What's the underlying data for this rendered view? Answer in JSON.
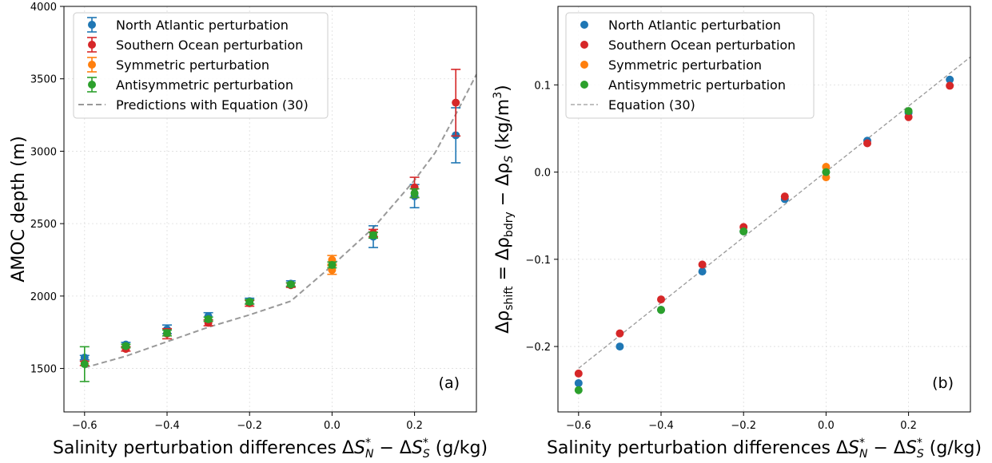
{
  "chart_data": [
    {
      "type": "scatter",
      "panel_label": "(a)",
      "xlabel": "Salinity perturbation differences ΔS*_N − ΔS*_S (g/kg)",
      "xlabel_parts": {
        "pre": "Salinity perturbation differences Δ",
        "s1": "S",
        "sup1": "*",
        "sub1": "N",
        "mid": " − Δ",
        "s2": "S",
        "sup2": "*",
        "sub2": "S",
        "post": " (g/kg)"
      },
      "ylabel": "AMOC depth (m)",
      "xlim": [
        -0.65,
        0.35
      ],
      "ylim": [
        1200,
        4000
      ],
      "xticks": [
        -0.6,
        -0.4,
        -0.2,
        0.0,
        0.2
      ],
      "xtick_labels": [
        "−0.6",
        "−0.4",
        "−0.2",
        "0.0",
        "0.2"
      ],
      "yticks": [
        1500,
        2000,
        2500,
        3000,
        3500,
        4000
      ],
      "ytick_labels": [
        "1500",
        "2000",
        "2500",
        "3000",
        "3500",
        "4000"
      ],
      "grid": true,
      "legend_position": "upper-left",
      "series": [
        {
          "name": "North Atlantic perturbation",
          "color": "#1f77b4",
          "marker": "errorbar",
          "x": [
            -0.6,
            -0.5,
            -0.4,
            -0.3,
            -0.2,
            -0.1,
            0.1,
            0.2,
            0.3
          ],
          "y": [
            1575,
            1665,
            1770,
            1860,
            1965,
            2085,
            2410,
            2690,
            3110
          ],
          "err": [
            15,
            15,
            30,
            25,
            20,
            20,
            75,
            80,
            190
          ]
        },
        {
          "name": "Southern Ocean perturbation",
          "color": "#d62728",
          "marker": "errorbar",
          "x": [
            -0.6,
            -0.5,
            -0.4,
            -0.3,
            -0.2,
            -0.1,
            0.1,
            0.2,
            0.3
          ],
          "y": [
            1535,
            1635,
            1740,
            1815,
            1950,
            2075,
            2435,
            2750,
            3335
          ],
          "err": [
            15,
            15,
            35,
            20,
            20,
            15,
            25,
            70,
            230
          ]
        },
        {
          "name": "Symmetric perturbation",
          "color": "#ff7f0e",
          "marker": "errorbar",
          "x": [
            0.0,
            0.0
          ],
          "y": [
            2250,
            2180
          ],
          "err": [
            30,
            30
          ]
        },
        {
          "name": "Antisymmetric perturbation",
          "color": "#2ca02c",
          "marker": "errorbar",
          "x": [
            -0.6,
            -0.5,
            -0.4,
            -0.3,
            -0.2,
            -0.1,
            0.0,
            0.1,
            0.2
          ],
          "y": [
            1530,
            1655,
            1745,
            1840,
            1960,
            2080,
            2215,
            2420,
            2710
          ],
          "err": [
            120,
            12,
            20,
            15,
            15,
            12,
            20,
            20,
            30
          ]
        },
        {
          "name": "Predictions with Equation (30)",
          "color": "#999999",
          "marker": "dashed-line",
          "x": [
            -0.6,
            -0.5,
            -0.4,
            -0.3,
            -0.2,
            -0.1,
            0.0,
            0.1,
            0.2,
            0.25,
            0.3,
            0.35
          ],
          "y": [
            1505,
            1585,
            1685,
            1785,
            1870,
            1965,
            2210,
            2470,
            2800,
            2990,
            3255,
            3530
          ]
        }
      ]
    },
    {
      "type": "scatter",
      "panel_label": "(b)",
      "xlabel": "Salinity perturbation differences ΔS*_N − ΔS*_S (g/kg)",
      "xlabel_parts": {
        "pre": "Salinity perturbation differences Δ",
        "s1": "S",
        "sup1": "*",
        "sub1": "N",
        "mid": " − Δ",
        "s2": "S",
        "sup2": "*",
        "sub2": "S",
        "post": " (g/kg)"
      },
      "ylabel": "Δρ_shift = Δρ_bdry − Δρ_S (kg/m³)",
      "ylabel_parts": {
        "d1": "Δρ",
        "sub1": "shift",
        "eq": " = Δρ",
        "sub2": "bdry",
        "mid": " − Δρ",
        "sub3": "S",
        "unit": " (kg/m",
        "sup": "3",
        "close": ")"
      },
      "xlim": [
        -0.65,
        0.35
      ],
      "ylim": [
        -0.275,
        0.19
      ],
      "xticks": [
        -0.6,
        -0.4,
        -0.2,
        0.0,
        0.2
      ],
      "xtick_labels": [
        "−0.6",
        "−0.4",
        "−0.2",
        "0.0",
        "0.2"
      ],
      "yticks": [
        -0.2,
        -0.1,
        0.0,
        0.1
      ],
      "ytick_labels": [
        "−0.2",
        "−0.1",
        "0.0",
        "0.1"
      ],
      "grid": true,
      "legend_position": "upper-left",
      "series": [
        {
          "name": "North Atlantic perturbation",
          "color": "#1f77b4",
          "marker": "dot",
          "x": [
            -0.6,
            -0.5,
            -0.4,
            -0.3,
            -0.2,
            -0.1,
            0.1,
            0.2,
            0.3
          ],
          "y": [
            -0.242,
            -0.2,
            -0.158,
            -0.114,
            -0.068,
            -0.031,
            0.036,
            0.068,
            0.106
          ]
        },
        {
          "name": "Southern Ocean perturbation",
          "color": "#d62728",
          "marker": "dot",
          "x": [
            -0.6,
            -0.5,
            -0.4,
            -0.3,
            -0.2,
            -0.1,
            0.1,
            0.2,
            0.3
          ],
          "y": [
            -0.231,
            -0.185,
            -0.146,
            -0.106,
            -0.063,
            -0.028,
            0.033,
            0.063,
            0.099
          ]
        },
        {
          "name": "Symmetric perturbation",
          "color": "#ff7f0e",
          "marker": "dot",
          "x": [
            0.0,
            0.0
          ],
          "y": [
            0.006,
            -0.006
          ]
        },
        {
          "name": "Antisymmetric perturbation",
          "color": "#2ca02c",
          "marker": "dot",
          "x": [
            -0.6,
            -0.4,
            -0.2,
            0.0,
            0.2
          ],
          "y": [
            -0.25,
            -0.158,
            -0.068,
            0.0,
            0.07
          ]
        },
        {
          "name": "Equation (30)",
          "color": "#999999",
          "marker": "dashed-line-thin",
          "x": [
            -0.6,
            0.35
          ],
          "y": [
            -0.225,
            0.132
          ]
        }
      ]
    }
  ]
}
